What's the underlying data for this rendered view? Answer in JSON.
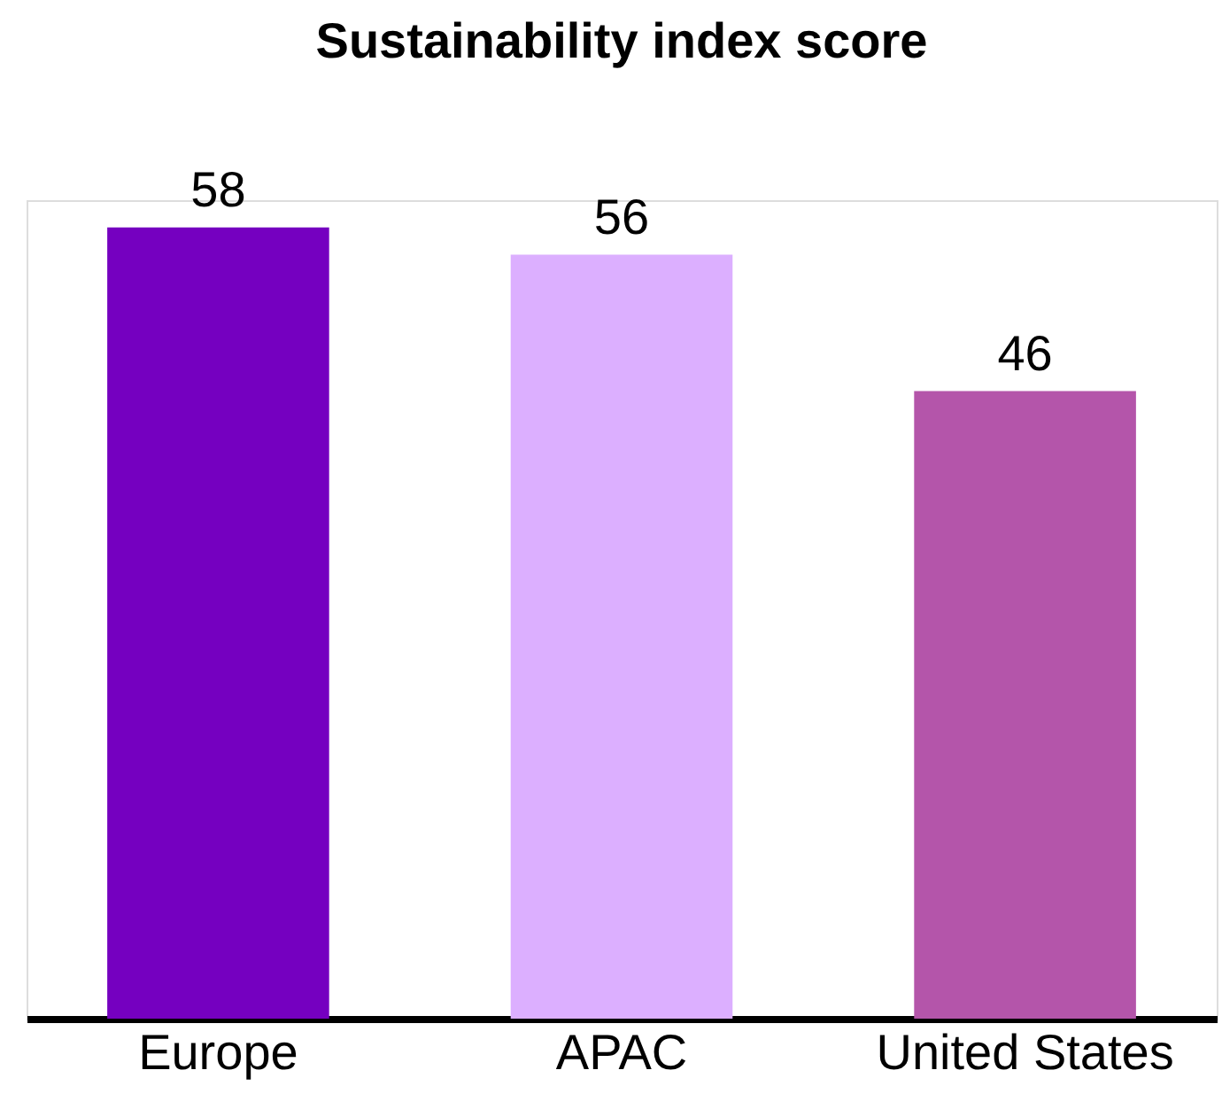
{
  "chart_data": {
    "type": "bar",
    "title": "Sustainability index score",
    "categories": [
      "Europe",
      "APAC",
      "United States"
    ],
    "values": [
      58,
      56,
      46
    ],
    "colors": [
      "#7500c0",
      "#dcafff",
      "#b455aa"
    ],
    "data_labels": true,
    "grid": false
  }
}
